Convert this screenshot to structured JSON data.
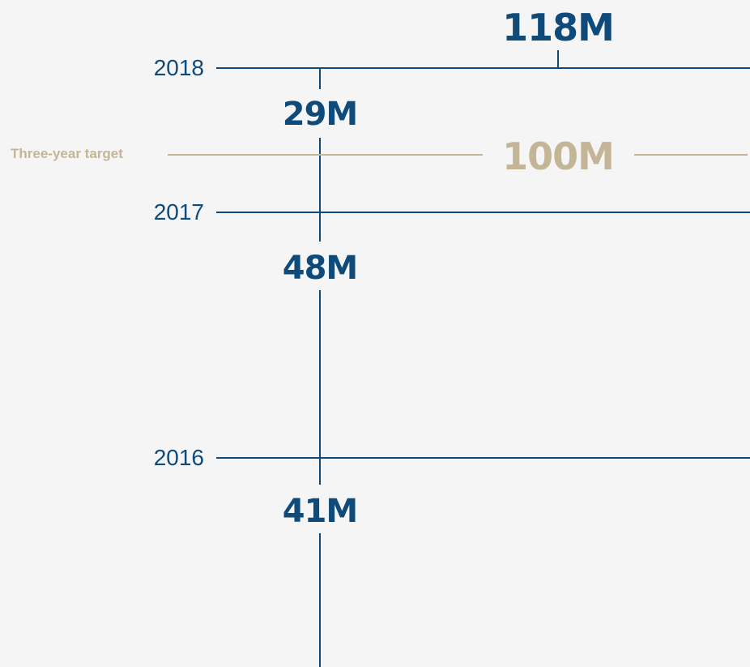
{
  "colors": {
    "primary": "#0e4a7a",
    "target": "#c4b596",
    "background": "#f5f5f5"
  },
  "chart_data": {
    "type": "line",
    "series": [
      {
        "values": [
          {
            "x": 2016,
            "label": "41M",
            "y": 41
          },
          {
            "x": 2017,
            "label": "48M",
            "y": 48
          },
          {
            "x": 2018,
            "label": "29M",
            "y": 29
          }
        ]
      }
    ],
    "years": [
      {
        "label": "2016",
        "cumulative": 41
      },
      {
        "label": "2017",
        "cumulative": 89
      },
      {
        "label": "2018",
        "cumulative": 118
      }
    ],
    "total": {
      "label": "118M",
      "value": 118
    },
    "target": {
      "name": "Three-year target",
      "label": "100M",
      "value": 100
    }
  }
}
